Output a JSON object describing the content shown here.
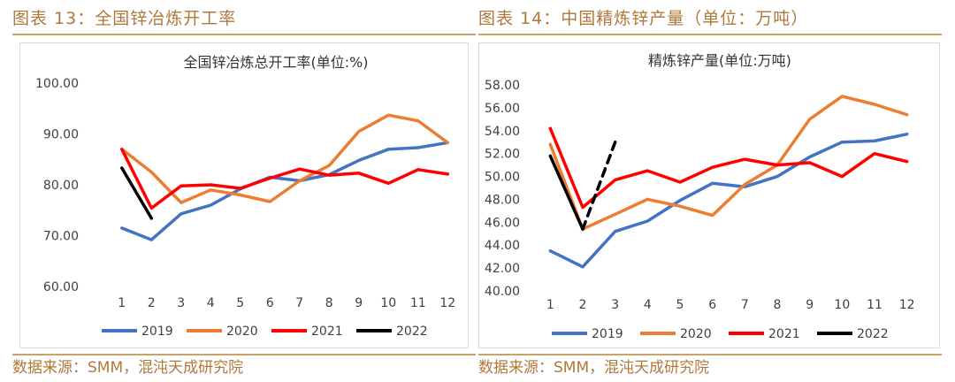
{
  "left": {
    "figure_title": "图表 13：全国锌冶炼开工率",
    "source": "数据来源：SMM，混沌天成研究院"
  },
  "right": {
    "figure_title": "图表 14：中国精炼锌产量（单位：万吨）",
    "source": "数据来源：SMM，混沌天成研究院"
  },
  "chart_data": [
    {
      "type": "line",
      "title": "全国锌冶炼总开工率(单位:%)",
      "xlabel": "",
      "ylabel": "",
      "x": [
        "1",
        "2",
        "3",
        "4",
        "5",
        "6",
        "7",
        "8",
        "9",
        "10",
        "11",
        "12"
      ],
      "ylim": [
        60,
        100
      ],
      "yticks": [
        "60.00",
        "70.00",
        "80.00",
        "90.00",
        "100.00"
      ],
      "grid": false,
      "legend": "bottom",
      "series": [
        {
          "name": "2019",
          "color": "#4472c4",
          "dash": false,
          "values": [
            71.5,
            69.2,
            74.3,
            76.0,
            79.2,
            81.5,
            80.8,
            82.0,
            84.8,
            87.0,
            87.3,
            88.3
          ]
        },
        {
          "name": "2020",
          "color": "#ed7d31",
          "dash": false,
          "values": [
            87.0,
            82.5,
            76.5,
            79.0,
            78.0,
            76.7,
            80.8,
            83.8,
            90.5,
            93.7,
            92.6,
            88.3
          ]
        },
        {
          "name": "2021",
          "color": "#ff0000",
          "dash": false,
          "values": [
            87.0,
            75.4,
            79.8,
            80.0,
            79.3,
            81.3,
            83.1,
            81.9,
            82.3,
            80.3,
            83.0,
            82.1
          ]
        },
        {
          "name": "2022",
          "color": "#000000",
          "dash": false,
          "values": [
            83.3,
            73.4,
            null,
            null,
            null,
            null,
            null,
            null,
            null,
            null,
            null,
            null
          ]
        }
      ]
    },
    {
      "type": "line",
      "title": "精炼锌产量(单位:万吨)",
      "xlabel": "",
      "ylabel": "",
      "x": [
        "1",
        "2",
        "3",
        "4",
        "5",
        "6",
        "7",
        "8",
        "9",
        "10",
        "11",
        "12"
      ],
      "ylim": [
        40,
        58
      ],
      "yticks": [
        "40.00",
        "42.00",
        "44.00",
        "46.00",
        "48.00",
        "50.00",
        "52.00",
        "54.00",
        "56.00",
        "58.00"
      ],
      "grid": false,
      "legend": "bottom",
      "series": [
        {
          "name": "2019",
          "color": "#4472c4",
          "dash": false,
          "values": [
            43.5,
            42.1,
            45.2,
            46.1,
            47.9,
            49.4,
            49.1,
            50.0,
            51.7,
            53.0,
            53.1,
            53.7
          ]
        },
        {
          "name": "2020",
          "color": "#ed7d31",
          "dash": false,
          "values": [
            52.8,
            45.4,
            46.7,
            48.0,
            47.4,
            46.6,
            49.3,
            51.0,
            55.0,
            57.0,
            56.3,
            55.4
          ]
        },
        {
          "name": "2021",
          "color": "#ff0000",
          "dash": false,
          "values": [
            54.2,
            47.3,
            49.7,
            50.5,
            49.5,
            50.8,
            51.5,
            51.0,
            51.2,
            50.0,
            52.0,
            51.3
          ]
        },
        {
          "name": "2022",
          "color": "#000000",
          "dash": false,
          "values": [
            51.8,
            45.4,
            null,
            null,
            null,
            null,
            null,
            null,
            null,
            null,
            null,
            null
          ]
        },
        {
          "name": "",
          "color": "#000000",
          "dash": true,
          "values": [
            null,
            45.4,
            53.0,
            null,
            null,
            null,
            null,
            null,
            null,
            null,
            null,
            null
          ]
        }
      ]
    }
  ]
}
